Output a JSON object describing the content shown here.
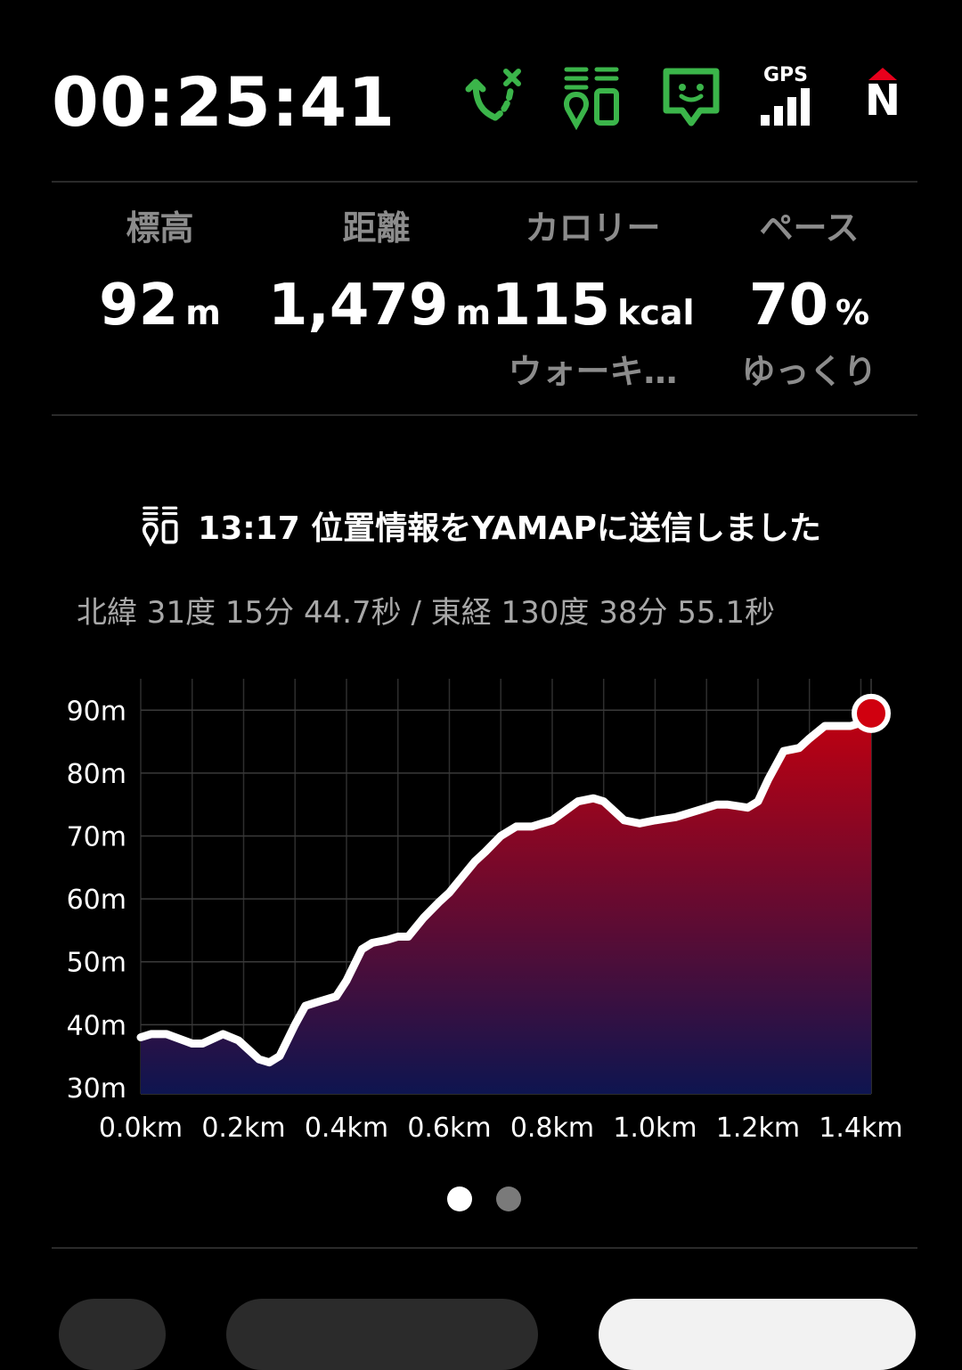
{
  "header": {
    "timer": "00:25:41",
    "icons": [
      "route-icon",
      "location-share-icon",
      "message-icon",
      "gps-signal-icon",
      "compass-north-icon"
    ],
    "gps_label": "GPS",
    "compass_label": "N",
    "accent_color": "#3bb54a",
    "north_color": "#e8001c"
  },
  "stats": [
    {
      "label": "標高",
      "value": "92",
      "unit": "m",
      "sub": ""
    },
    {
      "label": "距離",
      "value": "1,479",
      "unit": "m",
      "sub": ""
    },
    {
      "label": "カロリー",
      "value": "115",
      "unit": "kcal",
      "sub": "ウォーキ…"
    },
    {
      "label": "ペース",
      "value": "70",
      "unit": "%",
      "sub": "ゆっくり"
    }
  ],
  "status": {
    "message": "13:17 位置情報をYAMAPに送信しました",
    "coordinates": "北緯 31度 15分 44.7秒 / 東経 130度 38分 55.1秒"
  },
  "chart_data": {
    "type": "area",
    "title": "",
    "xlabel": "",
    "ylabel": "",
    "x_ticks": [
      "0.0km",
      "0.2km",
      "0.4km",
      "0.6km",
      "0.8km",
      "1.0km",
      "1.2km",
      "1.4km"
    ],
    "y_ticks": [
      "30m",
      "40m",
      "50m",
      "60m",
      "70m",
      "80m",
      "90m"
    ],
    "xlim": [
      0,
      1.42
    ],
    "ylim": [
      29,
      95
    ],
    "x": [
      0,
      0.02,
      0.05,
      0.1,
      0.12,
      0.16,
      0.19,
      0.23,
      0.25,
      0.27,
      0.3,
      0.32,
      0.34,
      0.38,
      0.4,
      0.43,
      0.45,
      0.48,
      0.5,
      0.52,
      0.55,
      0.58,
      0.6,
      0.62,
      0.65,
      0.67,
      0.7,
      0.73,
      0.76,
      0.8,
      0.85,
      0.88,
      0.9,
      0.94,
      0.97,
      1.0,
      1.04,
      1.08,
      1.12,
      1.14,
      1.18,
      1.2,
      1.22,
      1.25,
      1.28,
      1.3,
      1.33,
      1.35,
      1.38,
      1.4,
      1.42
    ],
    "y": [
      38,
      38.5,
      38.5,
      37,
      37,
      38.5,
      37.5,
      34.5,
      34,
      35,
      40,
      43,
      43.5,
      44.5,
      47,
      52,
      53,
      53.5,
      54,
      54,
      57,
      59.5,
      61,
      63,
      66,
      67.5,
      70,
      71.5,
      71.5,
      72.5,
      75.5,
      76,
      75.5,
      72.5,
      72,
      72.5,
      73,
      74,
      75,
      75,
      74.5,
      75.5,
      79,
      83.5,
      84,
      85.5,
      87.5,
      87.5,
      87.5,
      88,
      89.5
    ],
    "grid": true,
    "line_color": "#ffffff",
    "fill_top_color": "#c00010",
    "fill_bottom_color": "#0e1550",
    "marker_color": "#d0000f"
  }
}
